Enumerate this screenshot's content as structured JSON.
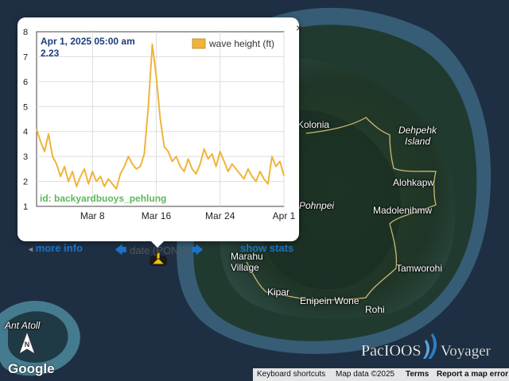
{
  "map": {
    "places": [
      {
        "name": "Kolonia",
        "italic": false
      },
      {
        "name": "Dehpehk Island",
        "italic": true
      },
      {
        "name": "Alohkapw",
        "italic": false
      },
      {
        "name": "Madolenihmw",
        "italic": false
      },
      {
        "name": "Pohnpei",
        "italic": true
      },
      {
        "name": "Tamworohi",
        "italic": false
      },
      {
        "name": "Marahu Village",
        "italic": false
      },
      {
        "name": "Kipar",
        "italic": false
      },
      {
        "name": "Enipein Wone",
        "italic": false
      },
      {
        "name": "Rohi",
        "italic": false
      },
      {
        "name": "Ant Atoll",
        "italic": true
      }
    ],
    "marker_icon": "buoy-marker-icon",
    "north_arrow_icon": "north-arrow-icon",
    "brand": "Google",
    "logo": "PacIOOS Voyager",
    "footer": {
      "shortcuts": "Keyboard shortcuts",
      "data": "Map data ©2025",
      "terms": "Terms",
      "report": "Report a map error"
    }
  },
  "popup": {
    "close_label": "×",
    "tooltip_date": "Apr 1, 2025 05:00 am",
    "tooltip_value": "2.23",
    "legend_label": "wave height (ft)",
    "id_label": "id: backyardbuoys_pehlung",
    "more_info": "more info",
    "date_label": "date (PONT)",
    "show_stats": "show stats"
  },
  "chart_data": {
    "type": "line",
    "title": "",
    "xlabel": "",
    "ylabel": "",
    "series": [
      {
        "name": "wave height (ft)",
        "color": "#f0b43a",
        "x_days": [
          0,
          0.5,
          1,
          1.5,
          2,
          2.5,
          3,
          3.5,
          4,
          4.5,
          5,
          5.5,
          6,
          6.5,
          7,
          7.5,
          8,
          8.5,
          9,
          9.5,
          10,
          10.5,
          11,
          11.5,
          12,
          12.5,
          13,
          13.5,
          14,
          14.5,
          15,
          15.5,
          16,
          16.5,
          17,
          17.5,
          18,
          18.5,
          19,
          19.5,
          20,
          20.5,
          21,
          21.5,
          22,
          22.5,
          23,
          23.5,
          24,
          24.5,
          25,
          25.5,
          26,
          26.5,
          27,
          27.5,
          28,
          28.5,
          29,
          29.5,
          30,
          30.5,
          31
        ],
        "values": [
          4.1,
          3.6,
          3.2,
          3.9,
          3.0,
          2.7,
          2.2,
          2.6,
          2.0,
          2.4,
          1.8,
          2.2,
          2.5,
          1.9,
          2.4,
          2.0,
          2.2,
          1.8,
          2.1,
          1.9,
          1.7,
          2.3,
          2.6,
          3.0,
          2.7,
          2.5,
          2.6,
          3.1,
          5.0,
          7.5,
          6.2,
          4.5,
          3.4,
          3.2,
          2.8,
          3.0,
          2.6,
          2.4,
          2.9,
          2.5,
          2.3,
          2.7,
          3.3,
          2.9,
          3.1,
          2.6,
          3.2,
          2.8,
          2.4,
          2.7,
          2.5,
          2.3,
          2.1,
          2.5,
          2.2,
          2.0,
          2.4,
          2.1,
          1.9,
          3.0,
          2.6,
          2.8,
          2.23
        ]
      }
    ],
    "x_ticks": [
      "Mar 8",
      "Mar 16",
      "Mar 24",
      "Apr 1"
    ],
    "x_tick_days": [
      7,
      15,
      23,
      31
    ],
    "y_ticks": [
      1,
      2,
      3,
      4,
      5,
      6,
      7,
      8
    ],
    "ylim": [
      1,
      8
    ],
    "xlim_days": [
      0,
      31
    ],
    "grid": true
  }
}
